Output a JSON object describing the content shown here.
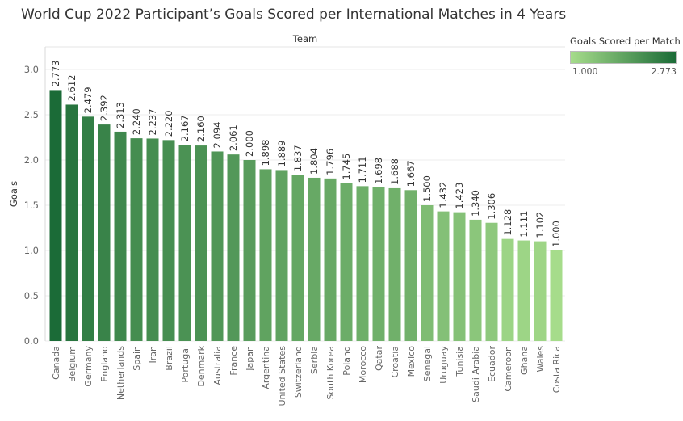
{
  "title": "World Cup 2022 Participant’s Goals Scored per International Matches in 4 Years",
  "legend": {
    "title": "Goals Scored per Match",
    "min_label": "1.000",
    "max_label": "2.773",
    "color_low": "#a6dc8b",
    "color_high": "#1b6b37"
  },
  "chart_data": {
    "type": "bar",
    "title": "World Cup 2022 Participant’s Goals Scored per International Matches in 4 Years",
    "xlabel": "Team",
    "ylabel": "Goals",
    "ylim": [
      0,
      3.25
    ],
    "yticks": [
      "0.0",
      "0.5",
      "1.0",
      "1.5",
      "2.0",
      "2.5",
      "3.0"
    ],
    "grid": true,
    "legend_position": "top-right",
    "categories": [
      "Canada",
      "Belgium",
      "Germany",
      "England",
      "Netherlands",
      "Spain",
      "Iran",
      "Brazil",
      "Portugal",
      "Denmark",
      "Australia",
      "France",
      "Japan",
      "Argentina",
      "United States",
      "Switzerland",
      "Serbia",
      "South Korea",
      "Poland",
      "Morocco",
      "Qatar",
      "Croatia",
      "Mexico",
      "Senegal",
      "Uruguay",
      "Tunisia",
      "Saudi Arabia",
      "Ecuador",
      "Cameroon",
      "Ghana",
      "Wales",
      "Costa Rica"
    ],
    "values": [
      2.773,
      2.612,
      2.479,
      2.392,
      2.313,
      2.24,
      2.237,
      2.22,
      2.167,
      2.16,
      2.094,
      2.061,
      2.0,
      1.898,
      1.889,
      1.837,
      1.804,
      1.796,
      1.745,
      1.711,
      1.698,
      1.688,
      1.667,
      1.5,
      1.432,
      1.423,
      1.34,
      1.306,
      1.128,
      1.111,
      1.102,
      1.0
    ],
    "labels": [
      "2.773",
      "2.612",
      "2.479",
      "2.392",
      "2.313",
      "2.240",
      "2.237",
      "2.220",
      "2.167",
      "2.160",
      "2.094",
      "2.061",
      "2.000",
      "1.898",
      "1.889",
      "1.837",
      "1.804",
      "1.796",
      "1.745",
      "1.711",
      "1.698",
      "1.688",
      "1.667",
      "1.500",
      "1.432",
      "1.423",
      "1.340",
      "1.306",
      "1.128",
      "1.111",
      "1.102",
      "1.000"
    ]
  }
}
